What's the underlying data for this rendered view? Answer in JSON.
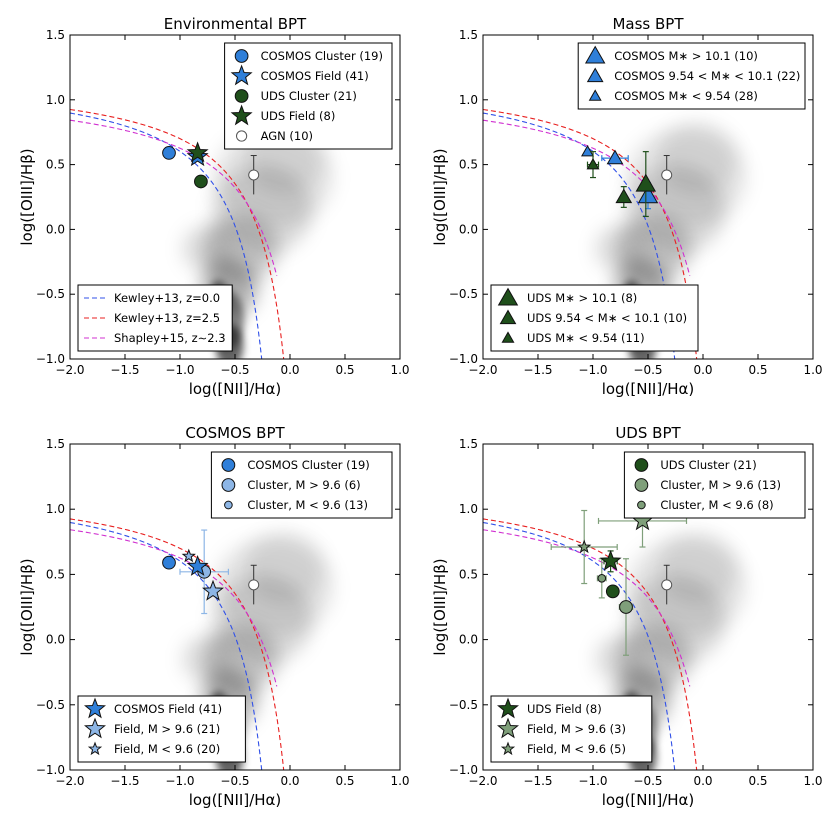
{
  "colors": {
    "cosmos": "#2f7fd9",
    "cosmos_light": "#8db6e6",
    "uds": "#1f4f1b",
    "uds_light": "#7f9f7a",
    "kewley0": "#3050e8",
    "kewley25": "#e82020",
    "shapley": "#d030d0"
  },
  "common": {
    "xlim": [
      -2.0,
      1.0
    ],
    "ylim": [
      -1.0,
      1.5
    ],
    "x_ticks": [
      -2.0,
      -1.5,
      -1.0,
      -0.5,
      0.0,
      0.5,
      1.0
    ],
    "y_ticks": [
      -1.0,
      -0.5,
      0.0,
      0.5,
      1.0,
      1.5
    ],
    "x_tick_labels": [
      "−2.0",
      "−1.5",
      "−1.0",
      "−0.5",
      "0.0",
      "0.5",
      "1.0"
    ],
    "y_tick_labels": [
      "−1.0",
      "−0.5",
      "0.0",
      "0.5",
      "1.0",
      "1.5"
    ],
    "xlabel": "log([NII]/Hα)",
    "ylabel": "log([OIII]/Hβ)",
    "agn_point": {
      "x": -0.33,
      "y": 0.42,
      "yerr": 0.15,
      "xerr": 0.03
    }
  },
  "chart_data": [
    {
      "type": "scatter",
      "title": "Environmental BPT",
      "legend_top": [
        {
          "label": "COSMOS Cluster (19)",
          "marker": "circle",
          "color": "cosmos",
          "size": "l"
        },
        {
          "label": "COSMOS Field (41)",
          "marker": "star",
          "color": "cosmos",
          "size": "l"
        },
        {
          "label": "UDS Cluster (21)",
          "marker": "circle",
          "color": "uds",
          "size": "l"
        },
        {
          "label": "UDS Field (8)",
          "marker": "star",
          "color": "uds",
          "size": "l"
        },
        {
          "label": "AGN (10)",
          "marker": "circle",
          "color": "agn",
          "size": "m"
        }
      ],
      "legend_bottom": [
        {
          "label": "Kewley+13, z=0.0",
          "line": "kewley0"
        },
        {
          "label": "Kewley+13, z=2.5",
          "line": "kewley25"
        },
        {
          "label": "Shapley+15, z∼2.3",
          "line": "shapley"
        }
      ],
      "points": [
        {
          "x": -1.1,
          "y": 0.59,
          "marker": "circle",
          "color": "cosmos",
          "size": "l"
        },
        {
          "x": -0.84,
          "y": 0.56,
          "marker": "star",
          "color": "cosmos",
          "size": "l"
        },
        {
          "x": -0.81,
          "y": 0.37,
          "marker": "circle",
          "color": "uds",
          "size": "l"
        },
        {
          "x": -0.84,
          "y": 0.59,
          "marker": "star",
          "color": "uds",
          "size": "l"
        }
      ]
    },
    {
      "type": "scatter",
      "title": "Mass BPT",
      "legend_top": [
        {
          "label": "COSMOS M∗ > 10.1 (10)",
          "marker": "tri",
          "color": "cosmos",
          "size": "l"
        },
        {
          "label": "COSMOS 9.54 < M∗ < 10.1 (22)",
          "marker": "tri",
          "color": "cosmos",
          "size": "m"
        },
        {
          "label": "COSMOS M∗ < 9.54 (28)",
          "marker": "tri",
          "color": "cosmos",
          "size": "s"
        }
      ],
      "legend_bottom": [
        {
          "label": "UDS M∗ > 10.1 (8)",
          "marker": "tri",
          "color": "uds",
          "size": "l"
        },
        {
          "label": "UDS 9.54 < M∗ < 10.1 (10)",
          "marker": "tri",
          "color": "uds",
          "size": "m"
        },
        {
          "label": "UDS M∗ < 9.54 (11)",
          "marker": "tri",
          "color": "uds",
          "size": "s"
        }
      ],
      "points": [
        {
          "x": -1.05,
          "y": 0.6,
          "marker": "tri",
          "color": "cosmos",
          "size": "s"
        },
        {
          "x": -0.8,
          "y": 0.55,
          "marker": "tri",
          "color": "cosmos",
          "size": "m",
          "xerr": 0.12
        },
        {
          "x": -0.5,
          "y": 0.26,
          "marker": "tri",
          "color": "cosmos",
          "size": "l",
          "yerr": 0.1
        },
        {
          "x": -1.0,
          "y": 0.5,
          "marker": "tri",
          "color": "uds",
          "size": "s",
          "xerr": 0.05,
          "yerr": 0.1
        },
        {
          "x": -0.72,
          "y": 0.25,
          "marker": "tri",
          "color": "uds",
          "size": "m",
          "yerr": 0.08
        },
        {
          "x": -0.52,
          "y": 0.35,
          "marker": "tri",
          "color": "uds",
          "size": "l",
          "yerr": 0.25
        }
      ]
    },
    {
      "type": "scatter",
      "title": "COSMOS BPT",
      "legend_top": [
        {
          "label": "COSMOS Cluster (19)",
          "marker": "circle",
          "color": "cosmos",
          "size": "l"
        },
        {
          "label": "Cluster, M > 9.6 (6)",
          "marker": "circle",
          "color": "cosmos_light",
          "size": "l"
        },
        {
          "label": "Cluster, M < 9.6 (13)",
          "marker": "circle",
          "color": "cosmos_light",
          "size": "s"
        }
      ],
      "legend_bottom": [
        {
          "label": "COSMOS Field (41)",
          "marker": "star",
          "color": "cosmos",
          "size": "l"
        },
        {
          "label": "Field, M > 9.6 (21)",
          "marker": "star",
          "color": "cosmos_light",
          "size": "l"
        },
        {
          "label": "Field, M < 9.6 (20)",
          "marker": "star",
          "color": "cosmos_light",
          "size": "s"
        }
      ],
      "points": [
        {
          "x": -0.78,
          "y": 0.52,
          "marker": "circle",
          "color": "cosmos_light",
          "size": "l",
          "xerr": 0.22,
          "yerr": 0.32
        },
        {
          "x": -0.92,
          "y": 0.64,
          "marker": "star",
          "color": "cosmos_light",
          "size": "s"
        },
        {
          "x": -1.1,
          "y": 0.59,
          "marker": "circle",
          "color": "cosmos",
          "size": "l"
        },
        {
          "x": -0.84,
          "y": 0.56,
          "marker": "star",
          "color": "cosmos",
          "size": "l"
        },
        {
          "x": -0.7,
          "y": 0.37,
          "marker": "star",
          "color": "cosmos_light",
          "size": "l"
        }
      ]
    },
    {
      "type": "scatter",
      "title": "UDS BPT",
      "legend_top": [
        {
          "label": "UDS Cluster (21)",
          "marker": "circle",
          "color": "uds",
          "size": "l"
        },
        {
          "label": "Cluster, M > 9.6 (13)",
          "marker": "circle",
          "color": "uds_light",
          "size": "l"
        },
        {
          "label": "Cluster, M < 9.6 (8)",
          "marker": "circle",
          "color": "uds_light",
          "size": "s"
        }
      ],
      "legend_bottom": [
        {
          "label": "UDS Field (8)",
          "marker": "star",
          "color": "uds",
          "size": "l"
        },
        {
          "label": "Field, M > 9.6 (3)",
          "marker": "star",
          "color": "uds_light",
          "size": "l"
        },
        {
          "label": "Field, M < 9.6 (5)",
          "marker": "star",
          "color": "uds_light",
          "size": "s"
        }
      ],
      "points": [
        {
          "x": -0.55,
          "y": 0.91,
          "marker": "star",
          "color": "uds_light",
          "size": "l",
          "xerr": 0.4,
          "yerr": 0.2
        },
        {
          "x": -1.08,
          "y": 0.71,
          "marker": "star",
          "color": "uds_light",
          "size": "s",
          "xerr": 0.3,
          "yerr": 0.28
        },
        {
          "x": -0.92,
          "y": 0.47,
          "marker": "circle",
          "color": "uds_light",
          "size": "s",
          "xerr": 0.04,
          "yerr": 0.15
        },
        {
          "x": -0.84,
          "y": 0.6,
          "marker": "star",
          "color": "uds",
          "size": "l",
          "xerr": 0.06,
          "yerr": 0.08
        },
        {
          "x": -0.82,
          "y": 0.37,
          "marker": "circle",
          "color": "uds",
          "size": "l"
        },
        {
          "x": -0.7,
          "y": 0.25,
          "marker": "circle",
          "color": "uds_light",
          "size": "l",
          "xerr": 0.06,
          "yerr": 0.37
        }
      ]
    }
  ]
}
